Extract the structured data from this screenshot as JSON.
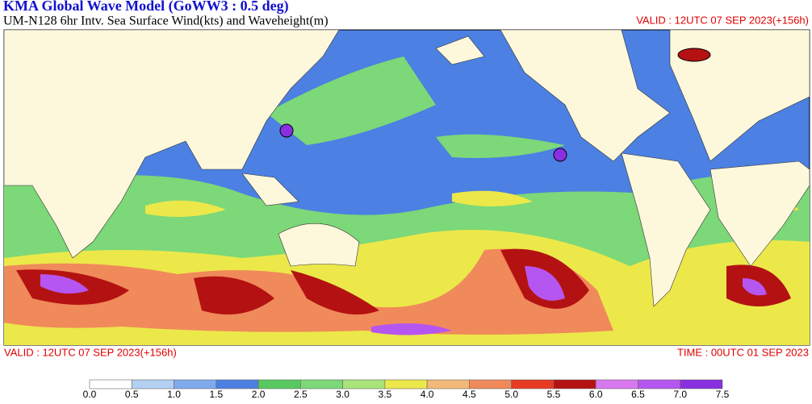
{
  "header": {
    "title": "KMA  Global Wave Model (GoWW3 : 0.5 deg)",
    "subtitle": "UM-N128  6hr Intv. Sea Surface Wind(kts) and Waveheight(m)",
    "valid": "VALID : 12UTC 07 SEP 2023(+156h)"
  },
  "footer": {
    "valid": "VALID : 12UTC 07 SEP 2023(+156h)",
    "time": "TIME : 00UTC 01 SEP 2023"
  },
  "colorbar": {
    "labels": [
      "0.0",
      "0.5",
      "1.0",
      "1.5",
      "2.0",
      "2.5",
      "3.0",
      "3.5",
      "4.0",
      "4.5",
      "5.0",
      "5.5",
      "6.0",
      "6.5",
      "7.0",
      "7.5"
    ],
    "colors": [
      "#ffffff",
      "#b4d0f2",
      "#80aaee",
      "#4c80e2",
      "#58c860",
      "#7cd878",
      "#a8e47a",
      "#ece84a",
      "#f2b878",
      "#f08a5a",
      "#e83a22",
      "#b41212",
      "#d878ee",
      "#b656f0",
      "#8a2ee2"
    ]
  }
}
